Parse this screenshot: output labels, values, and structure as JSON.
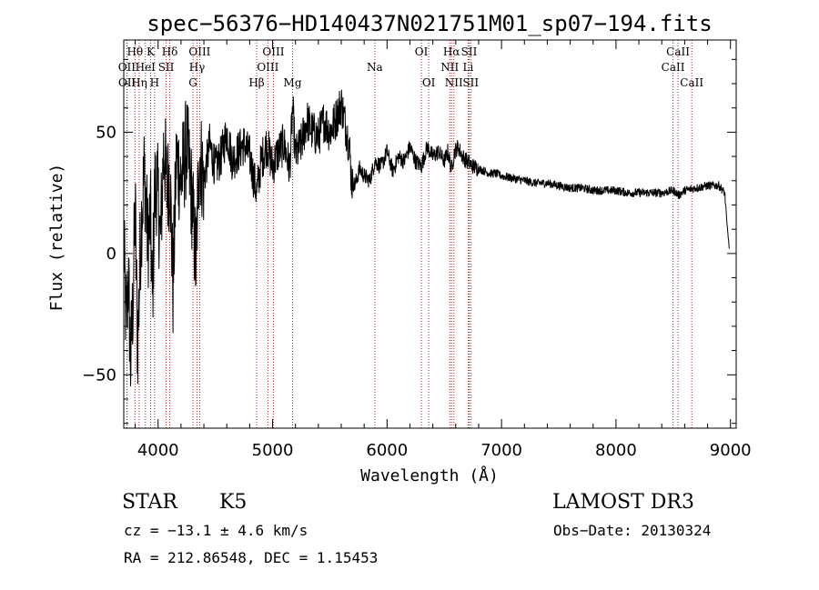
{
  "chart_data": {
    "type": "line",
    "title": "spec−56376−HD140437N021751M01_sp07−194.fits",
    "xlabel": "Wavelength (Å)",
    "ylabel": "Flux (relative)",
    "xlim": [
      3700,
      9050
    ],
    "ylim": [
      -72,
      88
    ],
    "xticks": [
      4000,
      5000,
      6000,
      7000,
      8000,
      9000
    ],
    "xtick_labels": [
      "4000",
      "5000",
      "6000",
      "7000",
      "8000",
      "9000"
    ],
    "yticks": [
      -50,
      0,
      50
    ],
    "ytick_labels": [
      "−50",
      "0",
      "50"
    ],
    "line_color": "#000000",
    "marker_color": "#b22222",
    "spectral_lines": [
      {
        "label": "Hθ",
        "x": 3798,
        "row": 1
      },
      {
        "label": "OII",
        "x": 3727,
        "row": 2
      },
      {
        "label": "OII",
        "x": 3729,
        "row": 3
      },
      {
        "label": "K",
        "x": 3934,
        "row": 1
      },
      {
        "label": "Hη",
        "x": 3835,
        "row": 3
      },
      {
        "label": "HeI",
        "x": 3889,
        "row": 2
      },
      {
        "label": "H",
        "x": 3969,
        "row": 3
      },
      {
        "label": "Hδ",
        "x": 4102,
        "row": 1
      },
      {
        "label": "SII",
        "x": 4070,
        "row": 2
      },
      {
        "label": "OIII",
        "x": 4363,
        "row": 1
      },
      {
        "label": "Hγ",
        "x": 4340,
        "row": 2
      },
      {
        "label": "G",
        "x": 4305,
        "row": 3
      },
      {
        "label": "OIII",
        "x": 5007,
        "row": 1
      },
      {
        "label": "OIII",
        "x": 4959,
        "row": 2
      },
      {
        "label": "Hβ",
        "x": 4861,
        "row": 3
      },
      {
        "label": "Mg",
        "x": 5175,
        "row": 3
      },
      {
        "label": "Na",
        "x": 5893,
        "row": 2
      },
      {
        "label": "OI",
        "x": 6300,
        "row": 1
      },
      {
        "label": "OI",
        "x": 6364,
        "row": 3
      },
      {
        "label": "Hα",
        "x": 6563,
        "row": 1
      },
      {
        "label": "NII",
        "x": 6548,
        "row": 2
      },
      {
        "label": "NII",
        "x": 6584,
        "row": 3
      },
      {
        "label": "SII",
        "x": 6717,
        "row": 1
      },
      {
        "label": "Li",
        "x": 6708,
        "row": 2
      },
      {
        "label": "SII",
        "x": 6731,
        "row": 3
      },
      {
        "label": "CaII",
        "x": 8542,
        "row": 1
      },
      {
        "label": "CaII",
        "x": 8498,
        "row": 2
      },
      {
        "label": "CaII",
        "x": 8662,
        "row": 3
      }
    ],
    "series": [
      {
        "name": "flux",
        "x": [
          3700,
          3720,
          3740,
          3760,
          3780,
          3800,
          3820,
          3850,
          3880,
          3910,
          3934,
          3950,
          3969,
          3990,
          4020,
          4050,
          4080,
          4102,
          4130,
          4160,
          4200,
          4250,
          4300,
          4330,
          4360,
          4400,
          4450,
          4500,
          4550,
          4600,
          4650,
          4700,
          4750,
          4800,
          4861,
          4900,
          4950,
          5000,
          5050,
          5100,
          5150,
          5175,
          5200,
          5250,
          5300,
          5350,
          5400,
          5450,
          5500,
          5550,
          5600,
          5640,
          5670,
          5690,
          5720,
          5760,
          5800,
          5850,
          5893,
          5950,
          6000,
          6050,
          6100,
          6150,
          6200,
          6250,
          6300,
          6350,
          6400,
          6450,
          6500,
          6530,
          6563,
          6590,
          6620,
          6660,
          6700,
          6750,
          6800,
          6850,
          6900,
          6950,
          7000,
          7100,
          7200,
          7300,
          7400,
          7500,
          7600,
          7700,
          7800,
          7900,
          8000,
          8100,
          8200,
          8300,
          8400,
          8500,
          8550,
          8600,
          8700,
          8800,
          8900,
          8950,
          8970,
          8990
        ],
        "y": [
          5,
          -30,
          -10,
          -45,
          -20,
          20,
          -40,
          10,
          35,
          5,
          15,
          -20,
          25,
          30,
          5,
          45,
          25,
          35,
          -15,
          40,
          30,
          45,
          20,
          -5,
          42,
          30,
          45,
          35,
          40,
          50,
          38,
          42,
          45,
          40,
          25,
          38,
          45,
          36,
          42,
          45,
          35,
          60,
          40,
          45,
          55,
          50,
          48,
          55,
          50,
          55,
          62,
          52,
          45,
          30,
          28,
          35,
          32,
          30,
          38,
          36,
          42,
          34,
          40,
          38,
          44,
          38,
          36,
          44,
          40,
          42,
          38,
          42,
          35,
          42,
          44,
          40,
          38,
          36,
          35,
          34,
          33,
          33,
          32,
          31,
          30,
          29,
          29,
          28,
          27,
          27,
          26,
          26,
          26,
          25,
          25,
          25,
          25,
          26,
          24,
          26,
          27,
          28,
          28,
          25,
          12,
          2
        ]
      }
    ]
  },
  "info": {
    "class_label": "STAR",
    "subclass_label": "K5",
    "cz_text": "cz = −13.1 ± 4.6 km/s",
    "radec_text": "RA = 212.86548, DEC =    1.15453",
    "survey_label": "LAMOST DR3",
    "obs_date_text": "Obs−Date: 20130324"
  }
}
